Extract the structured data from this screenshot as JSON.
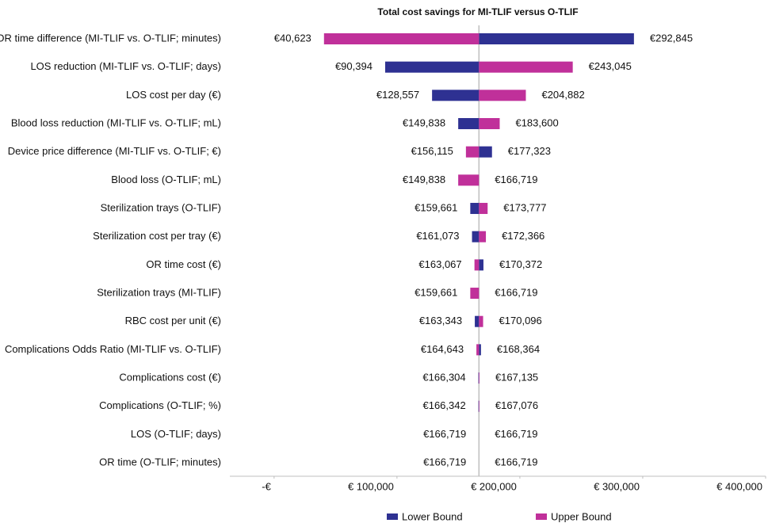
{
  "chart_data": {
    "type": "tornado",
    "title": "Total cost savings for MI-TLIF versus O-TLIF",
    "categories": [
      "OR time difference (MI-TLIF vs. O-TLIF; minutes)",
      "LOS reduction (MI-TLIF vs. O-TLIF; days)",
      "LOS cost per day (€)",
      "Blood loss reduction (MI-TLIF vs. O-TLIF; mL)",
      "Device price difference (MI-TLIF vs. O-TLIF; €)",
      "Blood loss (O-TLIF; mL)",
      "Sterilization trays (O-TLIF)",
      "Sterilization cost per tray (€)",
      "OR time cost (€)",
      "Sterilization trays (MI-TLIF)",
      "RBC cost per unit (€)",
      "Complications Odds Ratio (MI-TLIF vs. O-TLIF)",
      "Complications cost (€)",
      "Complications (O-TLIF; %)",
      "LOS (O-TLIF; days)",
      "OR time (O-TLIF; minutes)"
    ],
    "base": 166719,
    "series": [
      {
        "name": "Lower Bound",
        "color": "#2e3192",
        "values": [
          292845,
          90394,
          128557,
          149838,
          177323,
          166719,
          159661,
          161073,
          170372,
          166719,
          163343,
          168364,
          166304,
          166342,
          166719,
          166719
        ],
        "value_labels": [
          "€292,845",
          "€90,394",
          "€128,557",
          "€149,838",
          "€177,323",
          "€166,719",
          "€159,661",
          "€161,073",
          "€170,372",
          "€166,719",
          "€163,343",
          "€168,364",
          "€166,304",
          "€166,342",
          "€166,719",
          "€166,719"
        ]
      },
      {
        "name": "Upper Bound",
        "color": "#c0309a",
        "values": [
          40623,
          243045,
          204882,
          183600,
          156115,
          149838,
          173777,
          172366,
          163067,
          159661,
          170096,
          164643,
          167135,
          167076,
          166719,
          166719
        ],
        "value_labels": [
          "€40,623",
          "€243,045",
          "€204,882",
          "€183,600",
          "€156,115",
          "€149,838",
          "€173,777",
          "€172,366",
          "€163,067",
          "€159,661",
          "€170,096",
          "€164,643",
          "€167,135",
          "€167,076",
          "€166,719",
          "€166,719"
        ]
      }
    ],
    "xlim": [
      -36000,
      400000
    ],
    "xticks": [
      {
        "value": 0,
        "label": "-€"
      },
      {
        "value": 100000,
        "label": "€ 100,000"
      },
      {
        "value": 200000,
        "label": "€ 200,000"
      },
      {
        "value": 300000,
        "label": "€ 300,000"
      },
      {
        "value": 400000,
        "label": "€ 400,000"
      }
    ],
    "legend": "bottom"
  }
}
